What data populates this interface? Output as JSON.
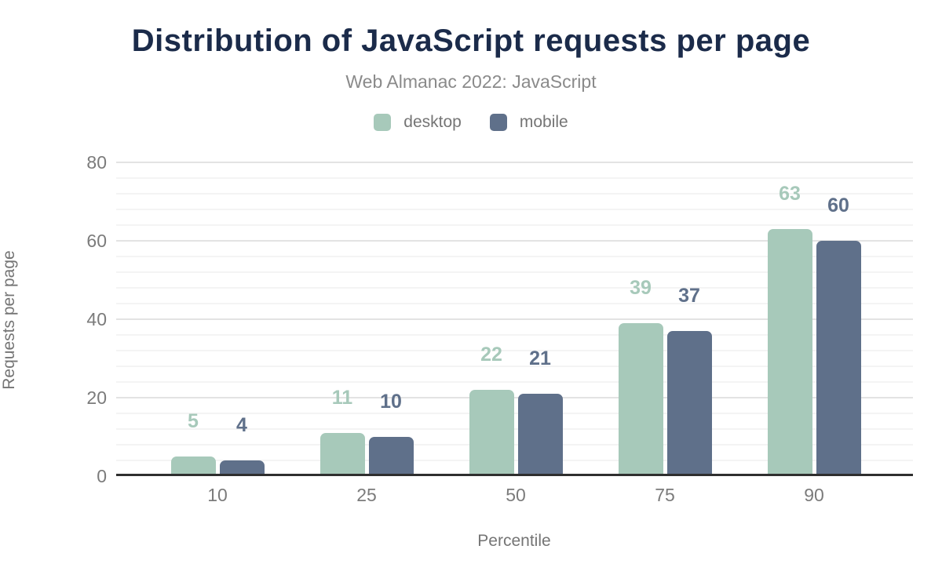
{
  "header": {
    "title": "Distribution of JavaScript requests per page",
    "subtitle": "Web Almanac 2022: JavaScript"
  },
  "chart_data": {
    "type": "bar",
    "title": "Distribution of JavaScript requests per page",
    "subtitle": "Web Almanac 2022: JavaScript",
    "categories": [
      "10",
      "25",
      "50",
      "75",
      "90"
    ],
    "series": [
      {
        "name": "desktop",
        "color": "#a7c9ba",
        "values": [
          5,
          11,
          22,
          39,
          63
        ]
      },
      {
        "name": "mobile",
        "color": "#5f708a",
        "values": [
          4,
          10,
          21,
          37,
          60
        ]
      }
    ],
    "xlabel": "Percentile",
    "ylabel": "Requests per page",
    "ylim": [
      0,
      80
    ],
    "yticks": [
      0,
      20,
      40,
      60,
      80
    ],
    "minor_grid_step": 4,
    "major_grid_step": 20,
    "grid": true,
    "legend_position": "top",
    "data_labels": true
  },
  "theme": {
    "title_color": "#1b2b4a",
    "subtitle_color": "#8a8a8a",
    "axis_text_color": "#757575",
    "tick_label_color": "#7b7b7b",
    "axis_line_color": "#2f2f2f",
    "major_gridline_color": "#e3e3e3",
    "minor_gridline_color": "#f4f4f4",
    "background_color": "#ffffff"
  }
}
